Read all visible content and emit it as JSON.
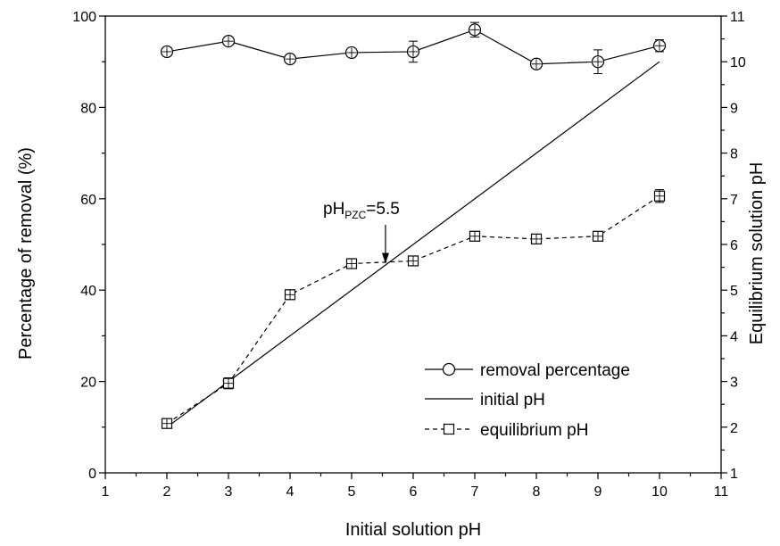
{
  "chart_data": {
    "type": "line",
    "xlabel": "Initial solution pH",
    "ylabel": "Percentage of removal (%)",
    "y2label": "Equilibrium solution pH",
    "xlim": [
      1,
      11
    ],
    "ylim": [
      0,
      100
    ],
    "y2lim": [
      1,
      11
    ],
    "xticks": [
      "1",
      "2",
      "3",
      "4",
      "5",
      "6",
      "7",
      "8",
      "9",
      "10",
      "11"
    ],
    "yticks": [
      "0",
      "20",
      "40",
      "60",
      "80",
      "100"
    ],
    "y2ticks": [
      "1",
      "2",
      "3",
      "4",
      "5",
      "6",
      "7",
      "8",
      "9",
      "10",
      "11"
    ],
    "grid": false,
    "legend_position": "bottom-right",
    "series": [
      {
        "name": "removal percentage",
        "axis": "left",
        "marker": "circle",
        "line": "solid",
        "x": [
          2,
          3,
          4,
          5,
          6,
          7,
          8,
          9,
          10
        ],
        "y": [
          92.2,
          94.5,
          90.6,
          92.0,
          92.2,
          97.0,
          89.5,
          90.0,
          93.5
        ],
        "err": [
          0.6,
          0.8,
          0.6,
          0.7,
          2.3,
          1.6,
          0.7,
          2.6,
          1.3
        ]
      },
      {
        "name": "initial pH",
        "axis": "right",
        "marker": "none",
        "line": "solid",
        "x": [
          2,
          10
        ],
        "y": [
          2,
          10
        ],
        "err": [
          0,
          0
        ]
      },
      {
        "name": "equilibrium pH",
        "axis": "right",
        "marker": "square",
        "line": "dashed",
        "x": [
          2,
          3,
          4,
          5,
          6,
          7,
          8,
          9,
          10
        ],
        "y": [
          2.08,
          2.96,
          4.9,
          5.58,
          5.64,
          6.18,
          6.12,
          6.18,
          7.06
        ],
        "err": [
          0.06,
          0.12,
          0.08,
          0.06,
          0.06,
          0.06,
          0.06,
          0.06,
          0.14
        ]
      }
    ],
    "annotation": {
      "text_main": "pH",
      "text_sub": "PZC",
      "text_value": "=5.5",
      "arrow_x": 5.55,
      "arrow_tip_y2": 5.58
    }
  }
}
